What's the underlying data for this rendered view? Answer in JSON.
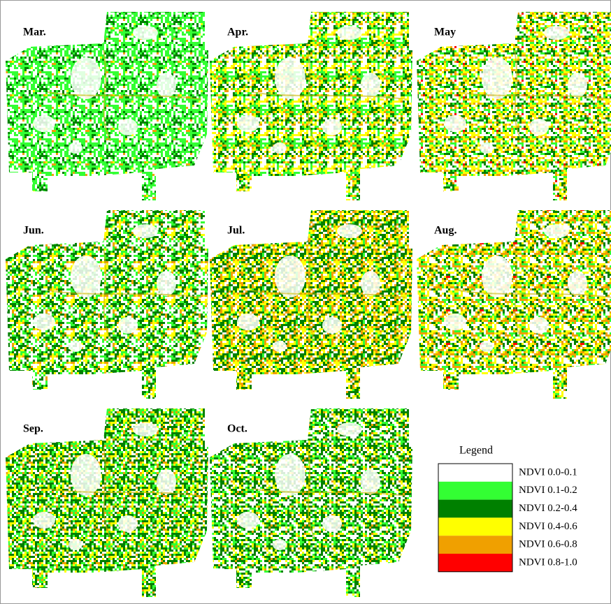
{
  "panels": [
    {
      "label": "Mar."
    },
    {
      "label": "Apr."
    },
    {
      "label": "May"
    },
    {
      "label": "Jun."
    },
    {
      "label": "Jul."
    },
    {
      "label": "Aug."
    },
    {
      "label": "Sep."
    },
    {
      "label": "Oct."
    }
  ],
  "legend": {
    "title": "Legend",
    "items": [
      {
        "label": "NDVI 0.0-0.1",
        "color": "#ffffff"
      },
      {
        "label": "NDVI 0.1-0.2",
        "color": "#33ff33"
      },
      {
        "label": "NDVI 0.2-0.4",
        "color": "#008000"
      },
      {
        "label": "NDVI 0.4-0.6",
        "color": "#ffff00"
      },
      {
        "label": "NDVI 0.6-0.8",
        "color": "#f0a000"
      },
      {
        "label": "NDVI 0.8-1.0",
        "color": "#ff0000"
      }
    ]
  }
}
